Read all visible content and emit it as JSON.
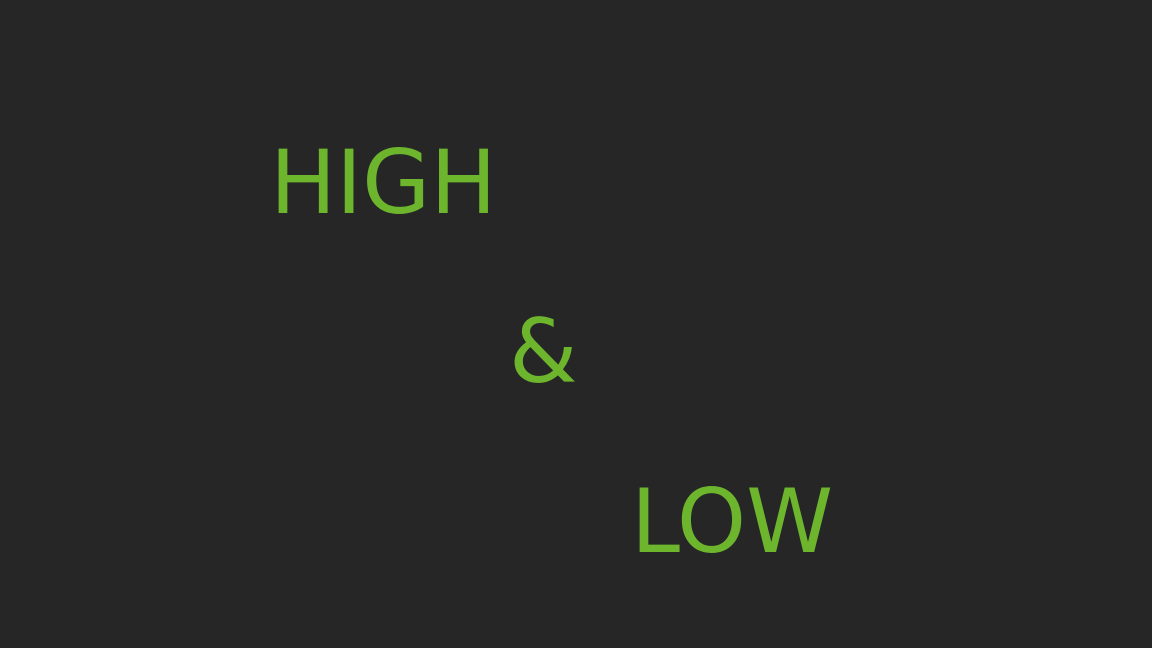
{
  "colors": {
    "background": "#262626",
    "text": "#6cb52d"
  },
  "slide": {
    "line1": "HIGH",
    "line2": "&",
    "line3": "LOW"
  }
}
